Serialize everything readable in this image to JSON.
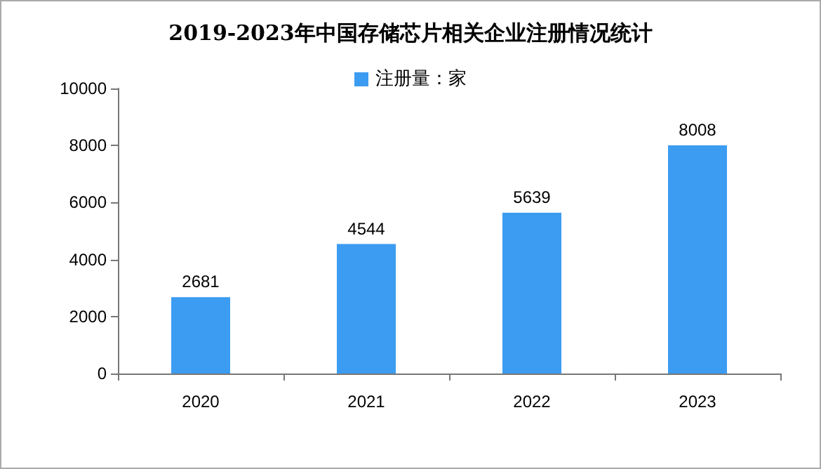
{
  "chart_data": {
    "type": "bar",
    "title": "2019-2023年中国存储芯片相关企业注册情况统计",
    "categories": [
      "2020",
      "2021",
      "2022",
      "2023"
    ],
    "series": [
      {
        "name": "注册量：家",
        "color": "#3c9cf2",
        "values": [
          2681,
          4544,
          5639,
          8008
        ]
      }
    ],
    "ylim": [
      0,
      10000
    ],
    "yticks": [
      0,
      2000,
      4000,
      6000,
      8000,
      10000
    ],
    "grid": false,
    "legend": "top",
    "data_labels": true
  }
}
